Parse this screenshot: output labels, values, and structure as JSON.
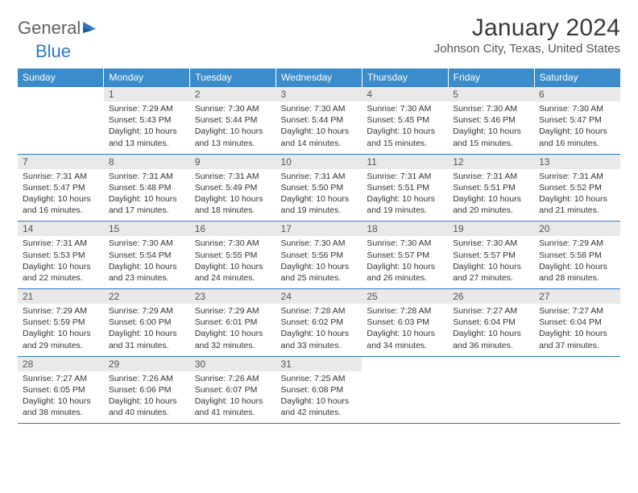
{
  "brand": {
    "word1": "General",
    "word2": "Blue"
  },
  "title": "January 2024",
  "location": "Johnson City, Texas, United States",
  "colors": {
    "header_bg": "#3b8ccb",
    "header_fg": "#ffffff",
    "rule": "#2e78c4",
    "daynum_bg": "#e9e9e9",
    "logo_gray": "#606060",
    "logo_blue": "#2e78c4",
    "body_text": "#333333"
  },
  "weekdays": [
    "Sunday",
    "Monday",
    "Tuesday",
    "Wednesday",
    "Thursday",
    "Friday",
    "Saturday"
  ],
  "start_offset": 1,
  "days": [
    {
      "n": 1,
      "sunrise": "7:29 AM",
      "sunset": "5:43 PM",
      "daylight": "10 hours and 13 minutes."
    },
    {
      "n": 2,
      "sunrise": "7:30 AM",
      "sunset": "5:44 PM",
      "daylight": "10 hours and 13 minutes."
    },
    {
      "n": 3,
      "sunrise": "7:30 AM",
      "sunset": "5:44 PM",
      "daylight": "10 hours and 14 minutes."
    },
    {
      "n": 4,
      "sunrise": "7:30 AM",
      "sunset": "5:45 PM",
      "daylight": "10 hours and 15 minutes."
    },
    {
      "n": 5,
      "sunrise": "7:30 AM",
      "sunset": "5:46 PM",
      "daylight": "10 hours and 15 minutes."
    },
    {
      "n": 6,
      "sunrise": "7:30 AM",
      "sunset": "5:47 PM",
      "daylight": "10 hours and 16 minutes."
    },
    {
      "n": 7,
      "sunrise": "7:31 AM",
      "sunset": "5:47 PM",
      "daylight": "10 hours and 16 minutes."
    },
    {
      "n": 8,
      "sunrise": "7:31 AM",
      "sunset": "5:48 PM",
      "daylight": "10 hours and 17 minutes."
    },
    {
      "n": 9,
      "sunrise": "7:31 AM",
      "sunset": "5:49 PM",
      "daylight": "10 hours and 18 minutes."
    },
    {
      "n": 10,
      "sunrise": "7:31 AM",
      "sunset": "5:50 PM",
      "daylight": "10 hours and 19 minutes."
    },
    {
      "n": 11,
      "sunrise": "7:31 AM",
      "sunset": "5:51 PM",
      "daylight": "10 hours and 19 minutes."
    },
    {
      "n": 12,
      "sunrise": "7:31 AM",
      "sunset": "5:51 PM",
      "daylight": "10 hours and 20 minutes."
    },
    {
      "n": 13,
      "sunrise": "7:31 AM",
      "sunset": "5:52 PM",
      "daylight": "10 hours and 21 minutes."
    },
    {
      "n": 14,
      "sunrise": "7:31 AM",
      "sunset": "5:53 PM",
      "daylight": "10 hours and 22 minutes."
    },
    {
      "n": 15,
      "sunrise": "7:30 AM",
      "sunset": "5:54 PM",
      "daylight": "10 hours and 23 minutes."
    },
    {
      "n": 16,
      "sunrise": "7:30 AM",
      "sunset": "5:55 PM",
      "daylight": "10 hours and 24 minutes."
    },
    {
      "n": 17,
      "sunrise": "7:30 AM",
      "sunset": "5:56 PM",
      "daylight": "10 hours and 25 minutes."
    },
    {
      "n": 18,
      "sunrise": "7:30 AM",
      "sunset": "5:57 PM",
      "daylight": "10 hours and 26 minutes."
    },
    {
      "n": 19,
      "sunrise": "7:30 AM",
      "sunset": "5:57 PM",
      "daylight": "10 hours and 27 minutes."
    },
    {
      "n": 20,
      "sunrise": "7:29 AM",
      "sunset": "5:58 PM",
      "daylight": "10 hours and 28 minutes."
    },
    {
      "n": 21,
      "sunrise": "7:29 AM",
      "sunset": "5:59 PM",
      "daylight": "10 hours and 29 minutes."
    },
    {
      "n": 22,
      "sunrise": "7:29 AM",
      "sunset": "6:00 PM",
      "daylight": "10 hours and 31 minutes."
    },
    {
      "n": 23,
      "sunrise": "7:29 AM",
      "sunset": "6:01 PM",
      "daylight": "10 hours and 32 minutes."
    },
    {
      "n": 24,
      "sunrise": "7:28 AM",
      "sunset": "6:02 PM",
      "daylight": "10 hours and 33 minutes."
    },
    {
      "n": 25,
      "sunrise": "7:28 AM",
      "sunset": "6:03 PM",
      "daylight": "10 hours and 34 minutes."
    },
    {
      "n": 26,
      "sunrise": "7:27 AM",
      "sunset": "6:04 PM",
      "daylight": "10 hours and 36 minutes."
    },
    {
      "n": 27,
      "sunrise": "7:27 AM",
      "sunset": "6:04 PM",
      "daylight": "10 hours and 37 minutes."
    },
    {
      "n": 28,
      "sunrise": "7:27 AM",
      "sunset": "6:05 PM",
      "daylight": "10 hours and 38 minutes."
    },
    {
      "n": 29,
      "sunrise": "7:26 AM",
      "sunset": "6:06 PM",
      "daylight": "10 hours and 40 minutes."
    },
    {
      "n": 30,
      "sunrise": "7:26 AM",
      "sunset": "6:07 PM",
      "daylight": "10 hours and 41 minutes."
    },
    {
      "n": 31,
      "sunrise": "7:25 AM",
      "sunset": "6:08 PM",
      "daylight": "10 hours and 42 minutes."
    }
  ],
  "labels": {
    "sunrise": "Sunrise: ",
    "sunset": "Sunset: ",
    "daylight": "Daylight: "
  }
}
